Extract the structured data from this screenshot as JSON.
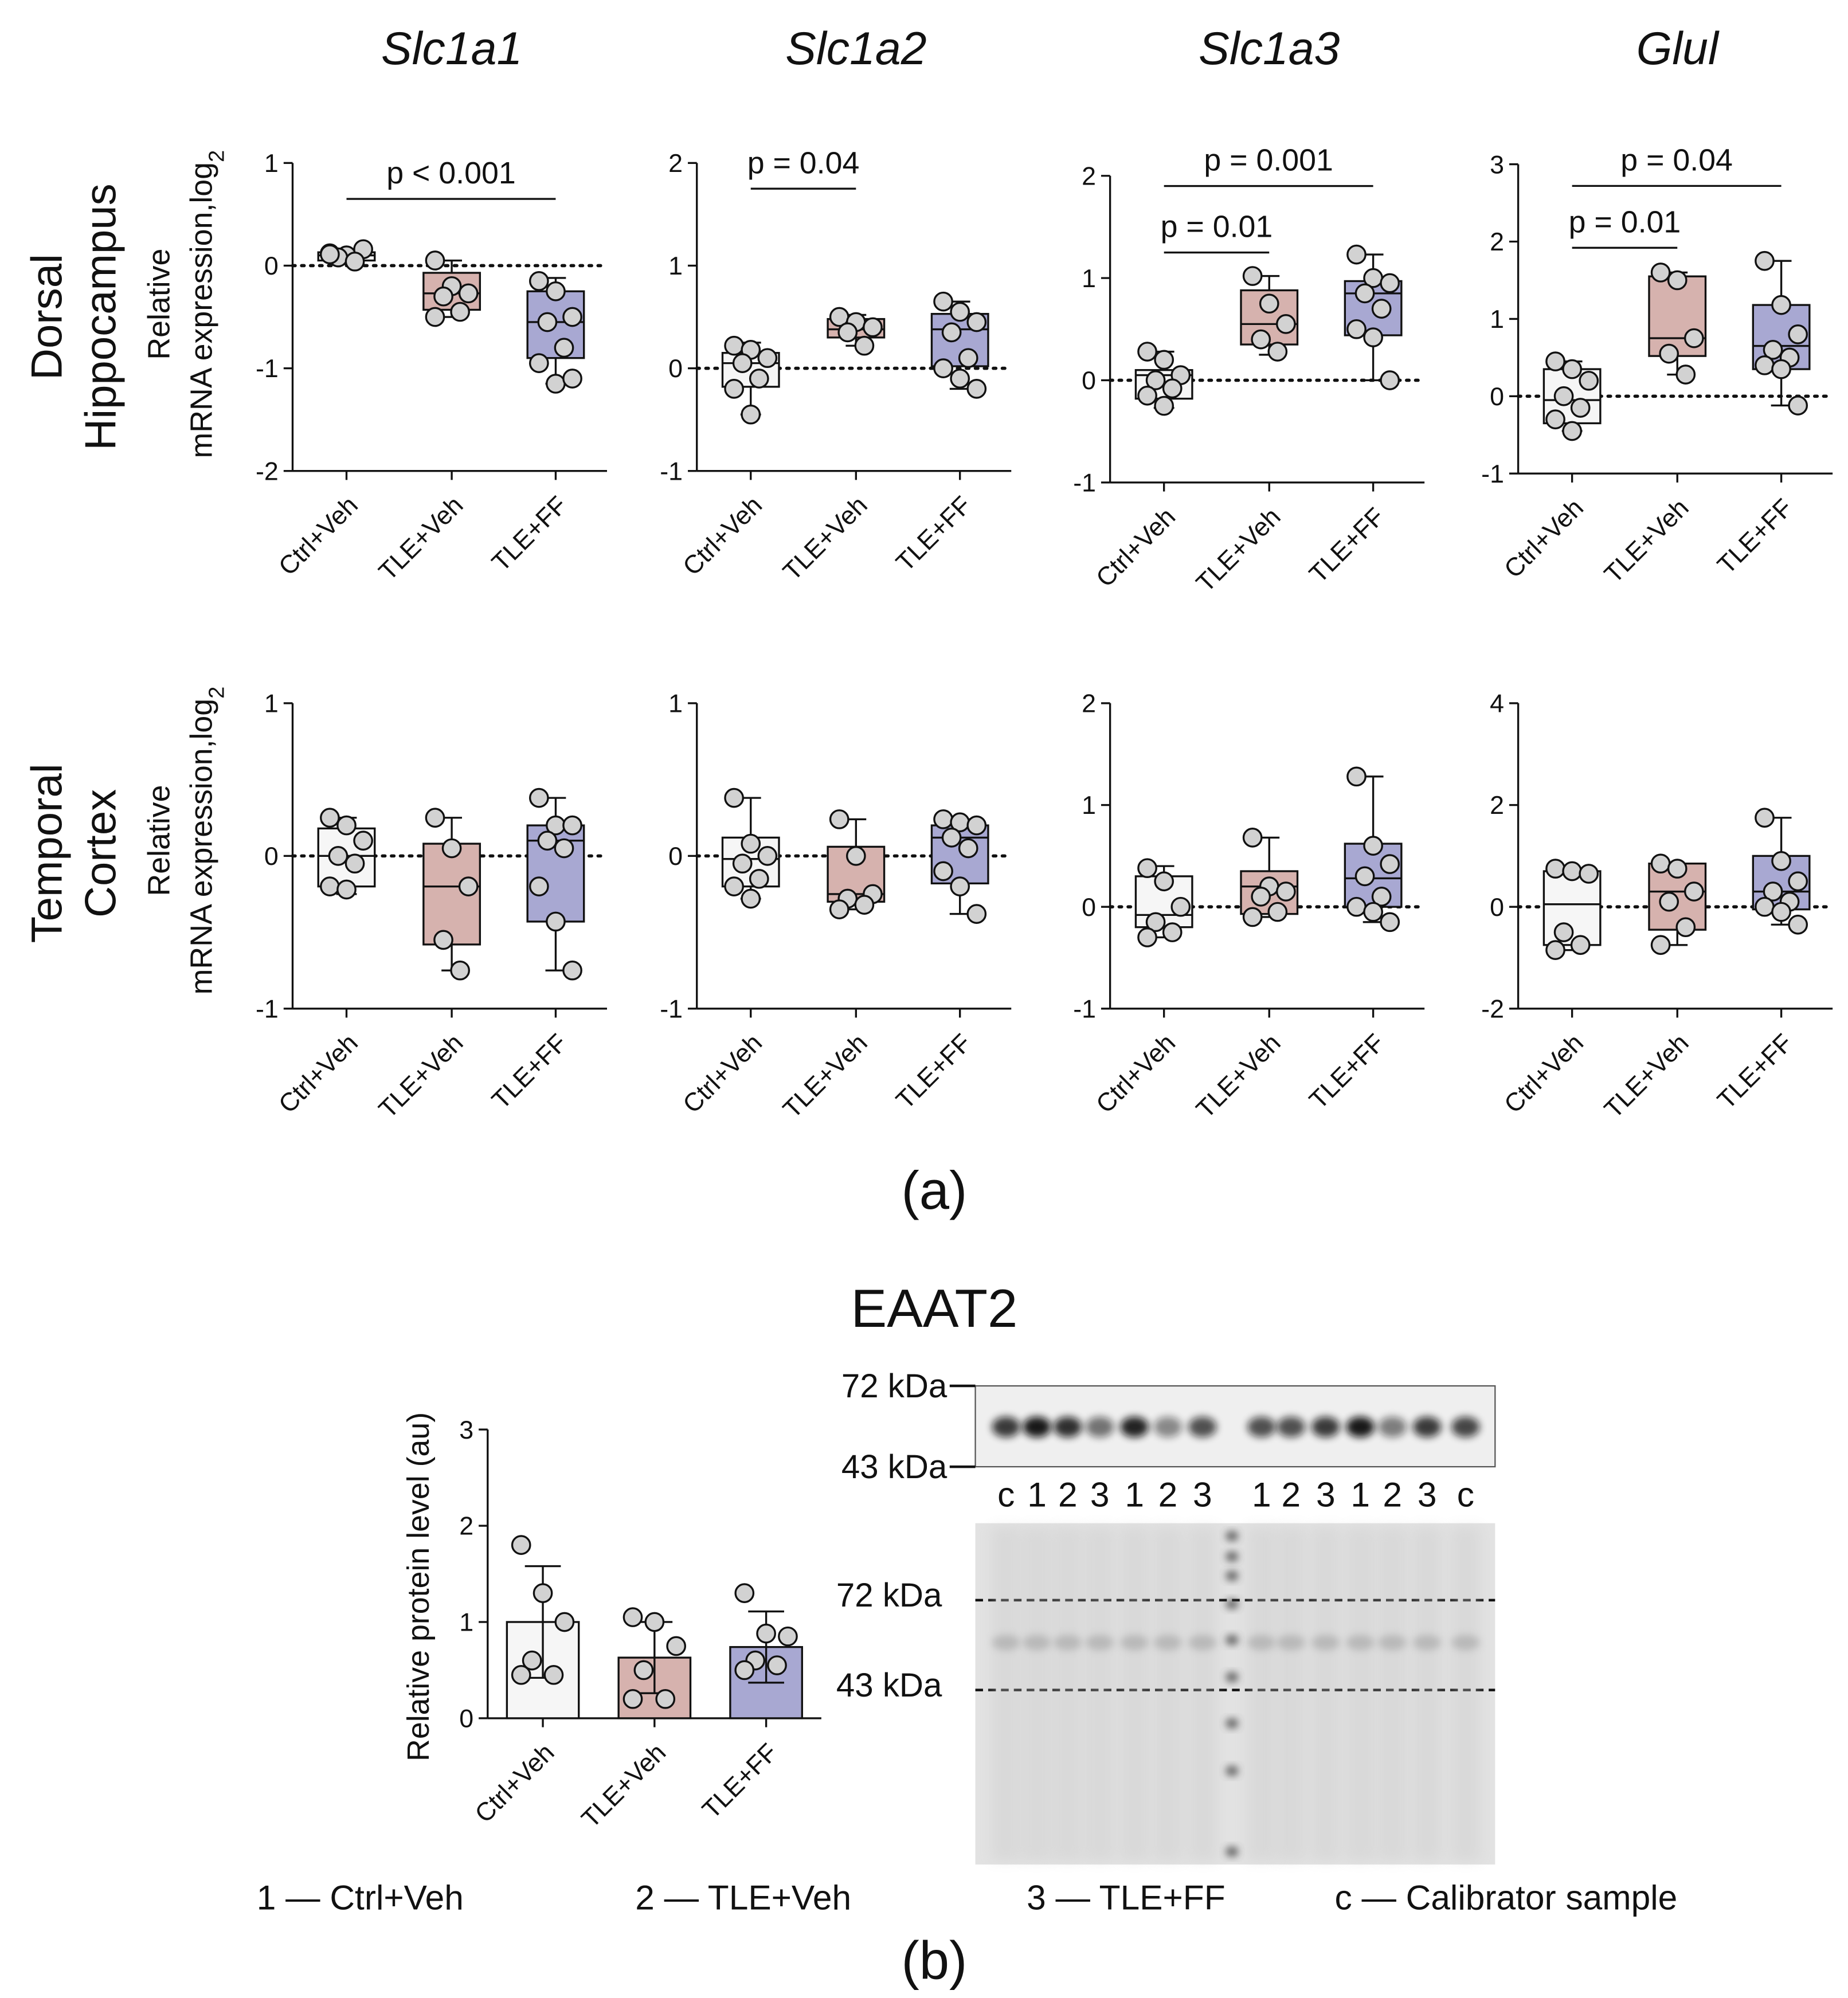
{
  "chart_data": [
    {
      "type": "box",
      "title": "Slc1a1",
      "categories": [
        "Ctrl+Veh",
        "TLE+Veh",
        "TLE+FF"
      ],
      "colors": [
        "#f6f6f6",
        "#d6b2ae",
        "#a8a8d2"
      ],
      "ylim": [
        -2,
        1
      ],
      "yticks": [
        -2,
        -1,
        0,
        1
      ],
      "refline": 0,
      "boxes": [
        {
          "min": 0.03,
          "q1": 0.05,
          "median": 0.1,
          "q3": 0.13,
          "max": 0.16,
          "points": [
            0.12,
            0.1,
            0.16,
            0.08,
            0.04,
            0.11
          ]
        },
        {
          "min": -0.5,
          "q1": -0.43,
          "median": -0.27,
          "q3": -0.07,
          "max": 0.05,
          "points": [
            0.05,
            -0.2,
            -0.27,
            -0.3,
            -0.45,
            -0.5
          ]
        },
        {
          "min": -1.15,
          "q1": -0.9,
          "median": -0.55,
          "q3": -0.25,
          "max": -0.12,
          "points": [
            -0.15,
            -0.25,
            -0.5,
            -0.55,
            -0.8,
            -0.95,
            -1.15,
            -1.1
          ]
        }
      ],
      "annotations": [
        {
          "text": "p < 0.001",
          "between": [
            "Ctrl+Veh",
            "TLE+FF"
          ],
          "y": 0.65
        }
      ]
    },
    {
      "type": "box",
      "title": "Slc1a2",
      "categories": [
        "Ctrl+Veh",
        "TLE+Veh",
        "TLE+FF"
      ],
      "colors": [
        "#f6f6f6",
        "#d6b2ae",
        "#a8a8d2"
      ],
      "ylim": [
        -1,
        2
      ],
      "yticks": [
        -1,
        0,
        1,
        2
      ],
      "refline": 0,
      "boxes": [
        {
          "min": -0.45,
          "q1": -0.18,
          "median": 0.05,
          "q3": 0.15,
          "max": 0.25,
          "points": [
            0.22,
            0.18,
            0.1,
            0.05,
            -0.1,
            -0.2,
            -0.45
          ]
        },
        {
          "min": 0.22,
          "q1": 0.3,
          "median": 0.38,
          "q3": 0.48,
          "max": 0.52,
          "points": [
            0.5,
            0.45,
            0.4,
            0.35,
            0.22
          ]
        },
        {
          "min": -0.2,
          "q1": 0.02,
          "median": 0.38,
          "q3": 0.53,
          "max": 0.65,
          "points": [
            0.65,
            0.55,
            0.45,
            0.35,
            0.1,
            0.0,
            -0.1,
            -0.2
          ]
        }
      ],
      "annotations": [
        {
          "text": "p = 0.04",
          "between": [
            "Ctrl+Veh",
            "TLE+Veh"
          ],
          "y": 1.75
        }
      ]
    },
    {
      "type": "box",
      "title": "Slc1a3",
      "categories": [
        "Ctrl+Veh",
        "TLE+Veh",
        "TLE+FF"
      ],
      "colors": [
        "#f6f6f6",
        "#d6b2ae",
        "#a8a8d2"
      ],
      "ylim": [
        -1,
        2
      ],
      "yticks": [
        -1,
        0,
        1,
        2
      ],
      "refline": 0,
      "boxes": [
        {
          "min": -0.27,
          "q1": -0.18,
          "median": 0.05,
          "q3": 0.1,
          "max": 0.28,
          "points": [
            0.28,
            0.2,
            0.05,
            0.0,
            -0.08,
            -0.15,
            -0.25
          ]
        },
        {
          "min": 0.25,
          "q1": 0.35,
          "median": 0.55,
          "q3": 0.88,
          "max": 1.02,
          "points": [
            1.02,
            0.75,
            0.55,
            0.4,
            0.28
          ]
        },
        {
          "min": 0.0,
          "q1": 0.44,
          "median": 0.85,
          "q3": 0.97,
          "max": 1.23,
          "points": [
            1.23,
            1.0,
            0.95,
            0.85,
            0.7,
            0.5,
            0.42,
            0.0
          ]
        }
      ],
      "annotations": [
        {
          "text": "p = 0.01",
          "between": [
            "Ctrl+Veh",
            "TLE+Veh"
          ],
          "y": 1.25
        },
        {
          "text": "p = 0.001",
          "between": [
            "Ctrl+Veh",
            "TLE+FF"
          ],
          "y": 1.9
        }
      ]
    },
    {
      "type": "box",
      "title": "Glul",
      "categories": [
        "Ctrl+Veh",
        "TLE+Veh",
        "TLE+FF"
      ],
      "colors": [
        "#f6f6f6",
        "#d6b2ae",
        "#a8a8d2"
      ],
      "ylim": [
        -1,
        3
      ],
      "yticks": [
        -1,
        0,
        1,
        2,
        3
      ],
      "refline": 0,
      "boxes": [
        {
          "min": -0.45,
          "q1": -0.35,
          "median": -0.05,
          "q3": 0.35,
          "max": 0.45,
          "points": [
            0.45,
            0.35,
            0.2,
            0.0,
            -0.15,
            -0.3,
            -0.45
          ]
        },
        {
          "min": 0.28,
          "q1": 0.52,
          "median": 0.75,
          "q3": 1.55,
          "max": 1.6,
          "points": [
            1.6,
            1.5,
            0.75,
            0.55,
            0.28
          ]
        },
        {
          "min": -0.12,
          "q1": 0.35,
          "median": 0.65,
          "q3": 1.18,
          "max": 1.75,
          "points": [
            1.75,
            1.18,
            0.8,
            0.6,
            0.5,
            0.4,
            0.35,
            -0.12
          ]
        }
      ],
      "annotations": [
        {
          "text": "p = 0.01",
          "between": [
            "Ctrl+Veh",
            "TLE+Veh"
          ],
          "y": 1.92
        },
        {
          "text": "p = 0.04",
          "between": [
            "Ctrl+Veh",
            "TLE+FF"
          ],
          "y": 2.72
        }
      ]
    },
    {
      "type": "box",
      "categories": [
        "Ctrl+Veh",
        "TLE+Veh",
        "TLE+FF"
      ],
      "colors": [
        "#f6f6f6",
        "#d6b2ae",
        "#a8a8d2"
      ],
      "ylim": [
        -1,
        1
      ],
      "yticks": [
        -1,
        0,
        1
      ],
      "refline": 0,
      "boxes": [
        {
          "min": -0.25,
          "q1": -0.2,
          "median": 0.0,
          "q3": 0.18,
          "max": 0.25,
          "points": [
            0.25,
            0.2,
            0.1,
            0.0,
            -0.05,
            -0.2,
            -0.22
          ]
        },
        {
          "min": -0.75,
          "q1": -0.58,
          "median": -0.2,
          "q3": 0.08,
          "max": 0.25,
          "points": [
            0.25,
            0.05,
            -0.2,
            -0.55,
            -0.75
          ]
        },
        {
          "min": -0.75,
          "q1": -0.43,
          "median": 0.1,
          "q3": 0.2,
          "max": 0.38,
          "points": [
            0.38,
            0.2,
            0.2,
            0.1,
            0.05,
            -0.2,
            -0.43,
            -0.75
          ]
        }
      ]
    },
    {
      "type": "box",
      "categories": [
        "Ctrl+Veh",
        "TLE+Veh",
        "TLE+FF"
      ],
      "colors": [
        "#f6f6f6",
        "#d6b2ae",
        "#a8a8d2"
      ],
      "ylim": [
        -1,
        1
      ],
      "yticks": [
        -1,
        0,
        1
      ],
      "refline": 0,
      "boxes": [
        {
          "min": -0.28,
          "q1": -0.2,
          "median": -0.02,
          "q3": 0.12,
          "max": 0.38,
          "points": [
            0.38,
            0.08,
            0.0,
            -0.05,
            -0.15,
            -0.2,
            -0.28
          ]
        },
        {
          "min": -0.35,
          "q1": -0.3,
          "median": -0.25,
          "q3": 0.06,
          "max": 0.24,
          "points": [
            0.24,
            0.0,
            -0.25,
            -0.28,
            -0.32,
            -0.35
          ]
        },
        {
          "min": -0.38,
          "q1": -0.18,
          "median": 0.12,
          "q3": 0.2,
          "max": 0.24,
          "points": [
            0.24,
            0.22,
            0.2,
            0.12,
            0.05,
            -0.1,
            -0.2,
            -0.38
          ]
        }
      ]
    },
    {
      "type": "box",
      "categories": [
        "Ctrl+Veh",
        "TLE+Veh",
        "TLE+FF"
      ],
      "colors": [
        "#f6f6f6",
        "#d6b2ae",
        "#a8a8d2"
      ],
      "ylim": [
        -1,
        2
      ],
      "yticks": [
        -1,
        0,
        1,
        2
      ],
      "refline": 0,
      "boxes": [
        {
          "min": -0.3,
          "q1": -0.2,
          "median": -0.08,
          "q3": 0.3,
          "max": 0.4,
          "points": [
            0.38,
            0.25,
            0.0,
            -0.15,
            -0.25,
            -0.3
          ]
        },
        {
          "min": -0.1,
          "q1": -0.07,
          "median": 0.2,
          "q3": 0.35,
          "max": 0.68,
          "points": [
            0.68,
            0.2,
            0.15,
            0.1,
            -0.05,
            -0.1
          ]
        },
        {
          "min": -0.15,
          "q1": 0.0,
          "median": 0.28,
          "q3": 0.62,
          "max": 1.28,
          "points": [
            1.28,
            0.6,
            0.42,
            0.3,
            0.1,
            0.0,
            -0.05,
            -0.15
          ]
        }
      ]
    },
    {
      "type": "box",
      "categories": [
        "Ctrl+Veh",
        "TLE+Veh",
        "TLE+FF"
      ],
      "colors": [
        "#f6f6f6",
        "#d6b2ae",
        "#a8a8d2"
      ],
      "ylim": [
        -2,
        4
      ],
      "yticks": [
        -2,
        0,
        2,
        4
      ],
      "refline": 0,
      "boxes": [
        {
          "min": -0.85,
          "q1": -0.75,
          "median": 0.05,
          "q3": 0.7,
          "max": 0.75,
          "points": [
            0.75,
            0.7,
            0.65,
            -0.5,
            -0.75,
            -0.85
          ]
        },
        {
          "min": -0.75,
          "q1": -0.45,
          "median": 0.3,
          "q3": 0.85,
          "max": 0.85,
          "points": [
            0.85,
            0.75,
            0.3,
            0.1,
            -0.4,
            -0.75
          ]
        },
        {
          "min": -0.35,
          "q1": -0.05,
          "median": 0.3,
          "q3": 1.0,
          "max": 1.75,
          "points": [
            1.75,
            0.9,
            0.5,
            0.3,
            0.1,
            0.0,
            -0.1,
            -0.35
          ]
        }
      ]
    },
    {
      "type": "bar",
      "title": "EAAT2",
      "y_label": "Relative protein level (au)",
      "categories": [
        "Ctrl+Veh",
        "TLE+Veh",
        "TLE+FF"
      ],
      "colors": [
        "#f6f6f6",
        "#d6b2ae",
        "#a8a8d2"
      ],
      "ylim": [
        0,
        3
      ],
      "yticks": [
        0,
        1,
        2,
        3
      ],
      "values": [
        1.0,
        0.63,
        0.74
      ],
      "errors": [
        0.58,
        0.37,
        0.37
      ],
      "points": [
        [
          1.8,
          1.3,
          1.0,
          0.6,
          0.45,
          0.45
        ],
        [
          1.05,
          1.0,
          0.75,
          0.5,
          0.2,
          0.2
        ],
        [
          1.3,
          0.88,
          0.85,
          0.6,
          0.55,
          0.5
        ]
      ]
    }
  ],
  "rows": [
    {
      "label": [
        "Dorsal",
        "Hippocampus"
      ],
      "y_label": [
        "Relative",
        "mRNA expression,log"
      ],
      "y_label_sub": "2"
    },
    {
      "label": [
        "Temporal",
        "Cortex"
      ],
      "y_label": [
        "Relative",
        "mRNA expression,log"
      ],
      "y_label_sub": "2"
    }
  ],
  "panel_a": "(a)",
  "panel_b": "(b)",
  "blot": {
    "marker_labels": [
      "72 kDa",
      "43 kDa"
    ],
    "lanes": [
      "c",
      "1",
      "2",
      "3",
      "1",
      "2",
      "3",
      "1",
      "2",
      "3",
      "1",
      "2",
      "3",
      "c"
    ],
    "stain_marker_labels": [
      "72 kDa",
      "43 kDa"
    ]
  },
  "legend": [
    "1 — Ctrl+Veh",
    "2 — TLE+Veh",
    "3 — TLE+FF",
    "c — Calibrator sample"
  ]
}
